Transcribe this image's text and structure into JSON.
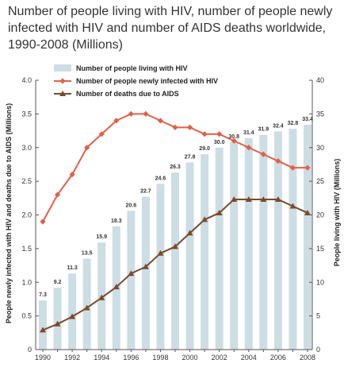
{
  "title": "Number of people living with HIV, number of people newly infected with HIV and number of AIDS deaths worldwide, 1990-2008 (Millions)",
  "colors": {
    "bars": "#cddde4",
    "new_infections": "#e0604a",
    "deaths": "#7a4a2a",
    "axis": "#555555",
    "text": "#333333"
  },
  "chart_data": {
    "type": "bar",
    "title": "Number of people living with HIV, number of people newly infected with HIV and number of AIDS deaths worldwide, 1990-2008 (Millions)",
    "x": [
      1990,
      1991,
      1992,
      1993,
      1994,
      1995,
      1996,
      1997,
      1998,
      1999,
      2000,
      2001,
      2002,
      2003,
      2004,
      2005,
      2006,
      2007,
      2008
    ],
    "x_tick_labels": [
      "1990",
      "1992",
      "1994",
      "1996",
      "1998",
      "2000",
      "2002",
      "2004",
      "2006",
      "2008"
    ],
    "ylabel_left": "People newly infected with HIV and deaths due to AIDS (Millions)",
    "ylabel_right": "People living with HIV (Millions)",
    "ylim_left": [
      0,
      4.0
    ],
    "ylim_right": [
      0,
      40
    ],
    "y_ticks_left": [
      "0",
      "0.5",
      "1.0",
      "1.5",
      "2.0",
      "2.5",
      "3.0",
      "3.5",
      "4.0"
    ],
    "y_ticks_right": [
      "0",
      "5",
      "10",
      "15",
      "20",
      "25",
      "30",
      "35",
      "40"
    ],
    "grid": false,
    "legend_position": "top-left",
    "series": [
      {
        "name": "Number of people living with HIV",
        "type": "bar",
        "axis": "right",
        "values": [
          7.3,
          9.2,
          11.3,
          13.5,
          15.9,
          18.3,
          20.6,
          22.7,
          24.6,
          26.3,
          27.8,
          29.0,
          30.0,
          30.8,
          31.4,
          31.9,
          32.4,
          32.8,
          33.4
        ],
        "data_labels": [
          "7.3",
          "9.2",
          "11.3",
          "13.5",
          "15.9",
          "18.3",
          "20.6",
          "22.7",
          "24.6",
          "26.3",
          "27.8",
          "29.0",
          "30.0",
          "30.8",
          "31.4",
          "31.9",
          "32.4",
          "32.8",
          "33.4"
        ]
      },
      {
        "name": "Number of people newly infected with HIV",
        "type": "line",
        "marker": "diamond",
        "axis": "left",
        "values": [
          1.9,
          2.3,
          2.6,
          3.0,
          3.2,
          3.4,
          3.5,
          3.5,
          3.4,
          3.3,
          3.3,
          3.2,
          3.2,
          3.1,
          3.0,
          2.9,
          2.8,
          2.7,
          2.7
        ]
      },
      {
        "name": "Number of deaths due to AIDS",
        "type": "line",
        "marker": "triangle",
        "axis": "left",
        "values": [
          0.29,
          0.38,
          0.49,
          0.62,
          0.77,
          0.93,
          1.13,
          1.23,
          1.43,
          1.53,
          1.73,
          1.93,
          2.03,
          2.23,
          2.23,
          2.23,
          2.23,
          2.13,
          2.03
        ]
      }
    ]
  }
}
